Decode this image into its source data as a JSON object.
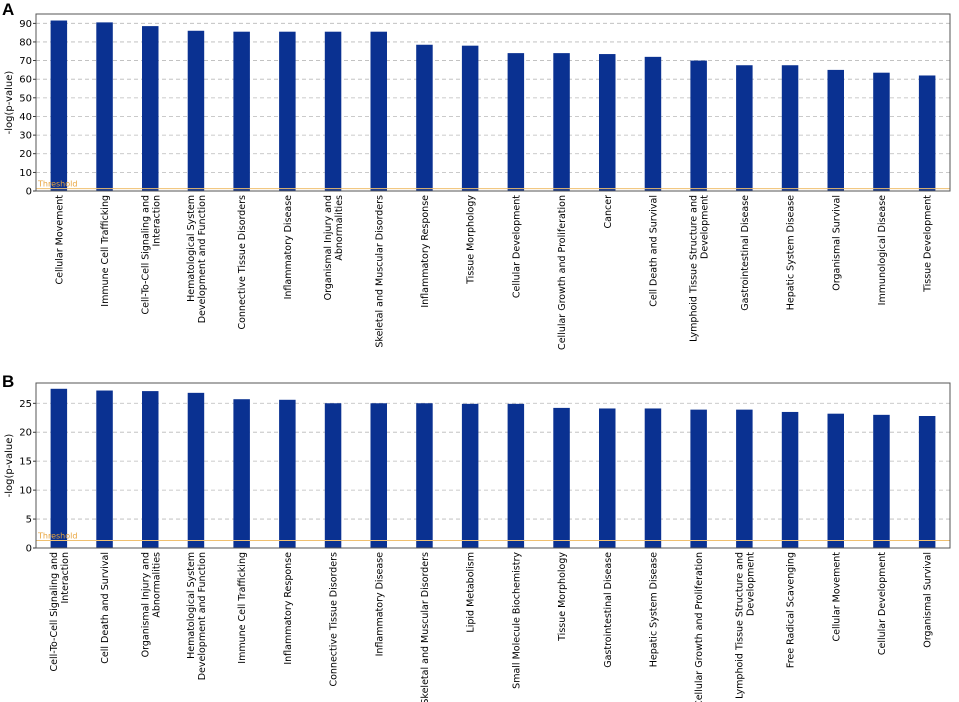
{
  "chart_data": [
    {
      "panel": "A",
      "type": "bar",
      "ylabel": "-log(p-value)",
      "ylim": [
        0,
        95
      ],
      "yticks": [
        0,
        10,
        20,
        30,
        40,
        50,
        60,
        70,
        80,
        90
      ],
      "threshold": 1.3,
      "threshold_label": "Threshold",
      "bar_color": "#0a3191",
      "threshold_color": "#f0c070",
      "grid": true,
      "categories": [
        [
          "Cellular Movement"
        ],
        [
          "Immune Cell Trafficking"
        ],
        [
          "Cell-To-Cell Signaling and",
          "Interaction"
        ],
        [
          "Hematological System",
          "Development and Function"
        ],
        [
          "Connective Tissue Disorders"
        ],
        [
          "Inflammatory Disease"
        ],
        [
          "Organismal Injury and",
          "Abnormalities"
        ],
        [
          "Skeletal and Muscular Disorders"
        ],
        [
          "Inflammatory Response"
        ],
        [
          "Tissue Morphology"
        ],
        [
          "Cellular Development"
        ],
        [
          "Cellular Growth and Proliferation"
        ],
        [
          "Cancer"
        ],
        [
          "Cell Death and Survival"
        ],
        [
          "Lymphoid Tissue Structure and",
          "Development"
        ],
        [
          "Gastrointestinal Disease"
        ],
        [
          "Hepatic System Disease"
        ],
        [
          "Organismal Survival"
        ],
        [
          "Immunological Disease"
        ],
        [
          "Tissue Development"
        ]
      ],
      "values": [
        91.5,
        90.5,
        88.5,
        86,
        85.5,
        85.5,
        85.5,
        85.5,
        78.5,
        78,
        74,
        74,
        73.5,
        72,
        70,
        67.5,
        67.5,
        65,
        63.5,
        62
      ]
    },
    {
      "panel": "B",
      "type": "bar",
      "ylabel": "-log(p-value)",
      "ylim": [
        0,
        28.5
      ],
      "yticks": [
        0,
        5,
        10,
        15,
        20,
        25
      ],
      "threshold": 1.3,
      "threshold_label": "Threshold",
      "bar_color": "#0a3191",
      "threshold_color": "#f0c070",
      "grid": true,
      "categories": [
        [
          "Cell-To-Cell Signaling and",
          "Interaction"
        ],
        [
          "Cell Death and Survival"
        ],
        [
          "Organismal Injury and",
          "Abnormalities"
        ],
        [
          "Hematological System",
          "Development and Function"
        ],
        [
          "Immune Cell Trafficking"
        ],
        [
          "Inflammatory Response"
        ],
        [
          "Connective Tissue Disorders"
        ],
        [
          "Inflammatory Disease"
        ],
        [
          "Skeletal and Muscular Disorders"
        ],
        [
          "Lipid Metabolism"
        ],
        [
          "Small Molecule Biochemistry"
        ],
        [
          "Tissue Morphology"
        ],
        [
          "Gastrointestinal Disease"
        ],
        [
          "Hepatic System Disease"
        ],
        [
          "Cellular Growth and Proliferation"
        ],
        [
          "Lymphoid Tissue Structure and",
          "Development"
        ],
        [
          "Free Radical Scavenging"
        ],
        [
          "Cellular Movement"
        ],
        [
          "Cellular Development"
        ],
        [
          "Organismal Survival"
        ]
      ],
      "values": [
        27.5,
        27.2,
        27.1,
        26.8,
        25.7,
        25.6,
        25,
        25,
        25,
        24.9,
        24.9,
        24.2,
        24.1,
        24.1,
        23.9,
        23.9,
        23.5,
        23.2,
        23,
        22.8
      ]
    }
  ]
}
